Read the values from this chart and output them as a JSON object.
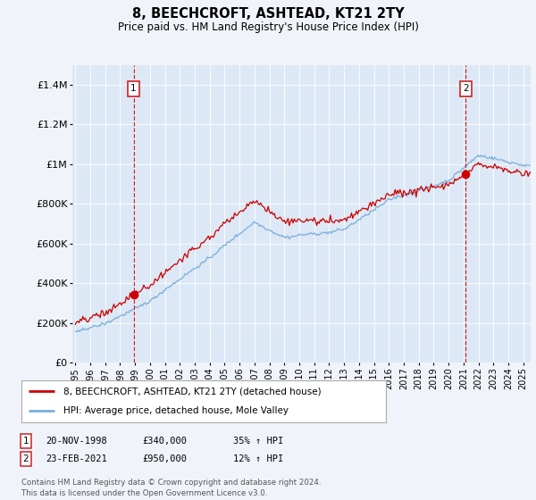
{
  "title": "8, BEECHCROFT, ASHTEAD, KT21 2TY",
  "subtitle": "Price paid vs. HM Land Registry's House Price Index (HPI)",
  "background_color": "#f0f4fa",
  "plot_bg_color": "#dce8f5",
  "ylabel_ticks": [
    "£0",
    "£200K",
    "£400K",
    "£600K",
    "£800K",
    "£1M",
    "£1.2M",
    "£1.4M"
  ],
  "ytick_vals": [
    0,
    200000,
    400000,
    600000,
    800000,
    1000000,
    1200000,
    1400000
  ],
  "ylim": [
    0,
    1500000
  ],
  "xlim_start": 1994.8,
  "xlim_end": 2025.5,
  "legend_line1": "8, BEECHCROFT, ASHTEAD, KT21 2TY (detached house)",
  "legend_line2": "HPI: Average price, detached house, Mole Valley",
  "red_line_color": "#cc0000",
  "blue_line_color": "#7aaddb",
  "sale1_x": 1998.9,
  "sale1_y": 340000,
  "sale1_label": "1",
  "sale1_date": "20-NOV-1998",
  "sale1_price": "£340,000",
  "sale1_hpi": "35% ↑ HPI",
  "sale2_x": 2021.15,
  "sale2_y": 950000,
  "sale2_label": "2",
  "sale2_date": "23-FEB-2021",
  "sale2_price": "£950,000",
  "sale2_hpi": "12% ↑ HPI",
  "footer": "Contains HM Land Registry data © Crown copyright and database right 2024.\nThis data is licensed under the Open Government Licence v3.0.",
  "xtick_years": [
    "1995",
    "1996",
    "1997",
    "1998",
    "1999",
    "2000",
    "2001",
    "2002",
    "2003",
    "2004",
    "2005",
    "2006",
    "2007",
    "2008",
    "2009",
    "2010",
    "2011",
    "2012",
    "2013",
    "2014",
    "2015",
    "2016",
    "2017",
    "2018",
    "2019",
    "2020",
    "2021",
    "2022",
    "2023",
    "2024",
    "2025"
  ]
}
